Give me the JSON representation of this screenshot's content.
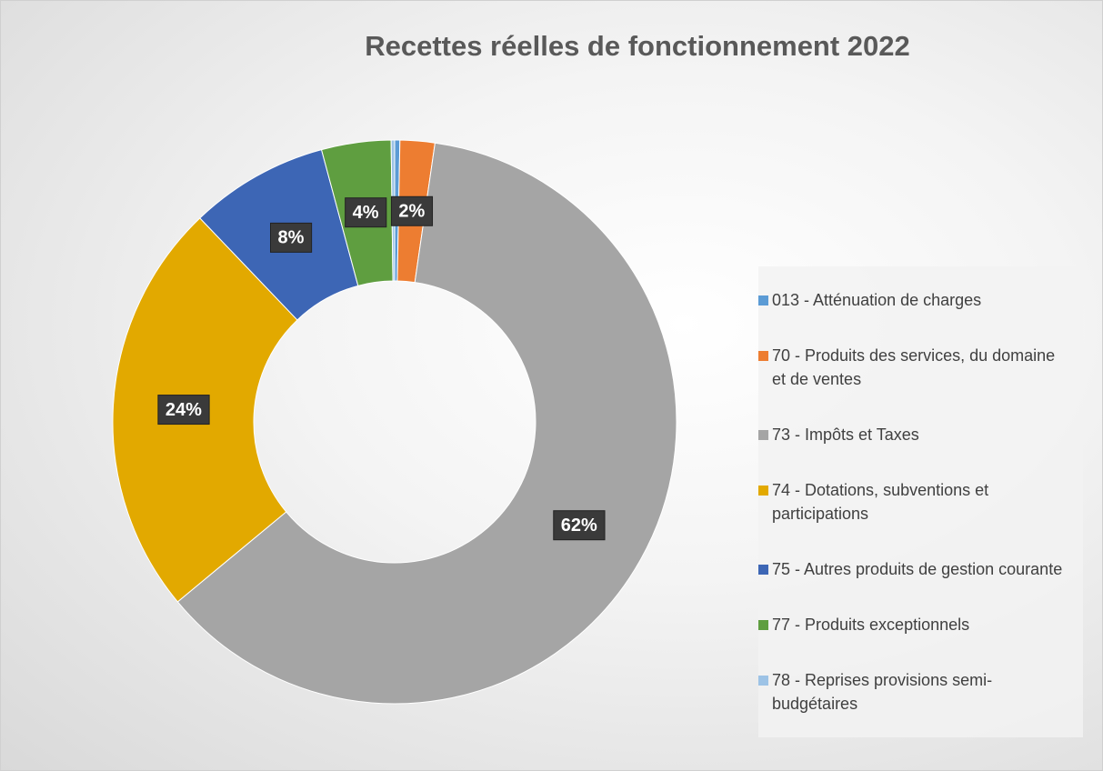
{
  "chart_data": {
    "type": "donut",
    "title": "Recettes réelles de fonctionnement 2022",
    "categories": [
      "013 - Atténuation de charges",
      "70 - Produits des services, du domaine et de ventes",
      "73 - Impôts et Taxes",
      "74 - Dotations, subventions et participations",
      "75 - Autres produits de gestion courante",
      "77 - Produits exceptionnels",
      "78 - Reprises provisions semi-budgétaires"
    ],
    "values": [
      0.3,
      2,
      62,
      24,
      8,
      4,
      0.2
    ],
    "value_labels": [
      null,
      "2%",
      "62%",
      "24%",
      "8%",
      "4%",
      null
    ],
    "colors": [
      "#5b9bd5",
      "#ed7d31",
      "#a5a5a5",
      "#e2a900",
      "#3d66b5",
      "#5f9e40",
      "#9dc3e6"
    ],
    "legend": "right"
  }
}
